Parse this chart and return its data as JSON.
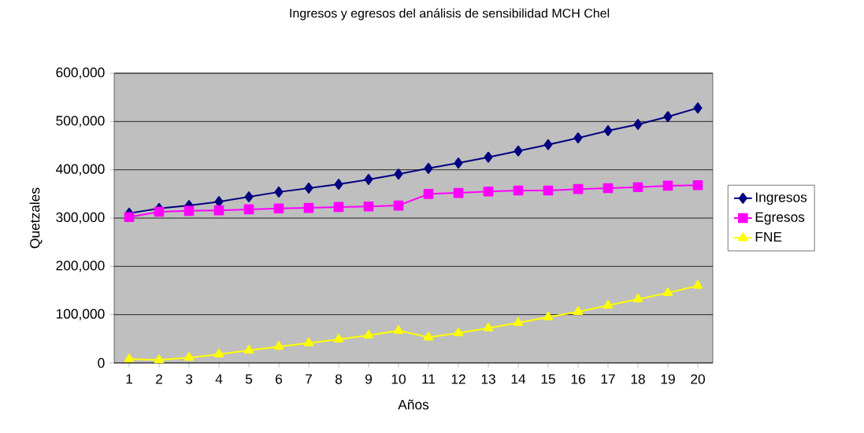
{
  "chart_data": {
    "type": "line",
    "title": "Ingresos y egresos del análisis de sensibilidad MCH Chel",
    "xlabel": "Años",
    "ylabel": "Quetzales",
    "categories": [
      "1",
      "2",
      "3",
      "4",
      "5",
      "6",
      "7",
      "8",
      "9",
      "10",
      "11",
      "12",
      "13",
      "14",
      "15",
      "16",
      "17",
      "18",
      "19",
      "20"
    ],
    "series": [
      {
        "name": "Ingresos",
        "color": "#000080",
        "marker": "diamond",
        "values": [
          310000,
          320000,
          326000,
          334000,
          344000,
          354000,
          362000,
          370000,
          380000,
          391000,
          403000,
          414000,
          426000,
          439000,
          452000,
          466000,
          481000,
          494000,
          510000,
          528000
        ]
      },
      {
        "name": "Egresos",
        "color": "#ff00ff",
        "marker": "square",
        "values": [
          302000,
          313000,
          315000,
          316000,
          318000,
          320000,
          321000,
          323000,
          324000,
          326000,
          350000,
          352000,
          355000,
          357000,
          357000,
          360000,
          362000,
          364000,
          367000,
          368000
        ]
      },
      {
        "name": "FNE",
        "color": "#ffff00",
        "marker": "triangle",
        "values": [
          8000,
          6000,
          11000,
          18000,
          26000,
          34000,
          41000,
          49000,
          57000,
          67000,
          53000,
          62000,
          72000,
          83000,
          95000,
          106000,
          119000,
          132000,
          145000,
          160000
        ]
      }
    ],
    "ylim": [
      0,
      600000
    ],
    "yticks": [
      {
        "value": 0,
        "label": "0"
      },
      {
        "value": 100000,
        "label": "100,000"
      },
      {
        "value": 200000,
        "label": "200,000"
      },
      {
        "value": 300000,
        "label": "300,000"
      },
      {
        "value": 400000,
        "label": "400,000"
      },
      {
        "value": 500000,
        "label": "500,000"
      },
      {
        "value": 600000,
        "label": "600,000"
      }
    ],
    "grid": "y",
    "legend": "right"
  }
}
